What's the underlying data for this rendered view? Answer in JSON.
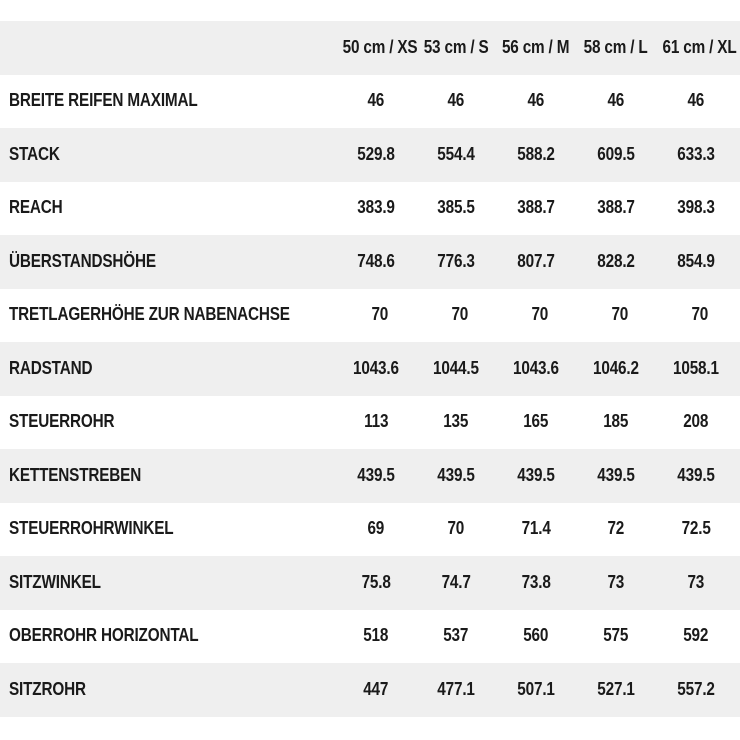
{
  "chart_data": {
    "type": "table",
    "title": "",
    "columns": [
      "50 cm / XS",
      "53 cm / S",
      "56 cm / M",
      "58 cm / L",
      "61 cm / XL"
    ],
    "rows": [
      {
        "label": "BREITE REIFEN MAXIMAL",
        "values": [
          "46",
          "46",
          "46",
          "46",
          "46"
        ]
      },
      {
        "label": "STACK",
        "values": [
          "529.8",
          "554.4",
          "588.2",
          "609.5",
          "633.3"
        ]
      },
      {
        "label": "REACH",
        "values": [
          "383.9",
          "385.5",
          "388.7",
          "388.7",
          "398.3"
        ]
      },
      {
        "label": "ÜBERSTANDSHÖHE",
        "values": [
          "748.6",
          "776.3",
          "807.7",
          "828.2",
          "854.9"
        ]
      },
      {
        "label": "TRETLAGERHÖHE ZUR NABENACHSE",
        "values": [
          "70",
          "70",
          "70",
          "70",
          "70"
        ]
      },
      {
        "label": "RADSTAND",
        "values": [
          "1043.6",
          "1044.5",
          "1043.6",
          "1046.2",
          "1058.1"
        ]
      },
      {
        "label": "STEUERROHR",
        "values": [
          "113",
          "135",
          "165",
          "185",
          "208"
        ]
      },
      {
        "label": "KETTENSTREBEN",
        "values": [
          "439.5",
          "439.5",
          "439.5",
          "439.5",
          "439.5"
        ]
      },
      {
        "label": "STEUERROHRWINKEL",
        "values": [
          "69",
          "70",
          "71.4",
          "72",
          "72.5"
        ]
      },
      {
        "label": "SITZWINKEL",
        "values": [
          "75.8",
          "74.7",
          "73.8",
          "73",
          "73"
        ]
      },
      {
        "label": "OBERROHR HORIZONTAL",
        "values": [
          "518",
          "537",
          "560",
          "575",
          "592"
        ]
      },
      {
        "label": "SITZROHR",
        "values": [
          "447",
          "477.1",
          "507.1",
          "527.1",
          "557.2"
        ]
      }
    ],
    "layout": {
      "header_row_shaded": true,
      "body_row_alternation": "white, gray, white, gray ... starting white",
      "value_alignment": "center",
      "label_alignment": "left",
      "legend": "none",
      "grid": "off"
    }
  },
  "colors": {
    "row_shade": "#efefef",
    "row_plain": "#ffffff",
    "text": "#1a1a1a",
    "page_background": "#ffffff"
  }
}
